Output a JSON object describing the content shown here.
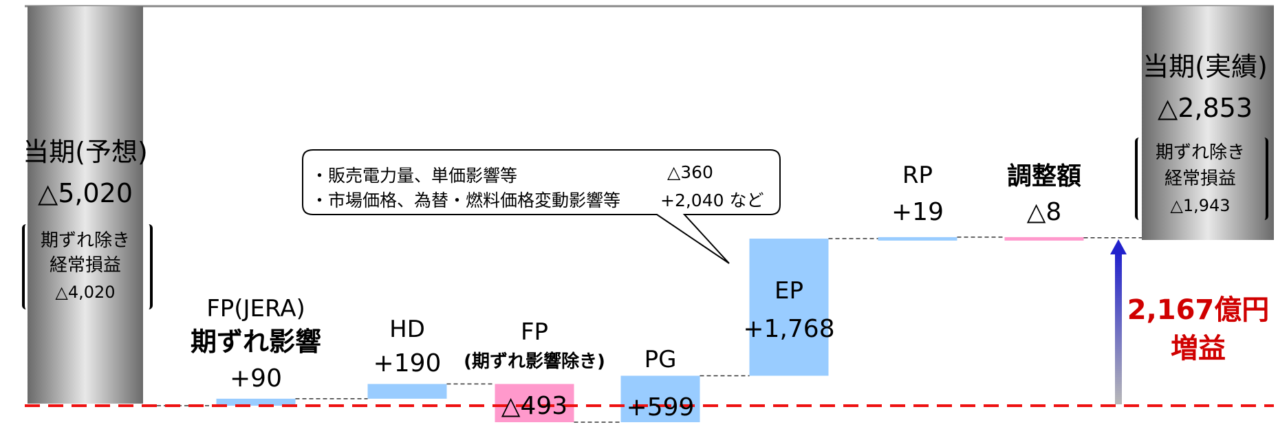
{
  "chart_data": {
    "type": "waterfall",
    "unit": "億円",
    "start": {
      "title": "当期(予想)",
      "value_label": "△5,020",
      "value": -5020,
      "note_lines": [
        "期ずれ除き",
        "経常損益"
      ],
      "note_value": "△4,020"
    },
    "steps": [
      {
        "name_lines": [
          "FP(JERA)",
          "期ずれ影響"
        ],
        "label": "+90",
        "value": 90,
        "color": "#99ccff"
      },
      {
        "name_lines": [
          "HD"
        ],
        "label": "+190",
        "value": 190,
        "color": "#99ccff"
      },
      {
        "name_lines": [
          "FP",
          "(期ずれ影響除き)"
        ],
        "label": "△493",
        "value": -493,
        "color": "#ff99cc"
      },
      {
        "name_lines": [
          "PG"
        ],
        "label": "+599",
        "value": 599,
        "color": "#99ccff"
      },
      {
        "name_lines": [
          "EP"
        ],
        "label": "+1,768",
        "value": 1768,
        "color": "#99ccff"
      },
      {
        "name_lines": [
          "RP"
        ],
        "label": "+19",
        "value": 19,
        "color": "#99ccff"
      },
      {
        "name_lines": [
          "調整額"
        ],
        "label": "△8",
        "value": -8,
        "color": "#ff99cc"
      }
    ],
    "end": {
      "title": "当期(実績)",
      "value_label": "△2,853",
      "value": -2853,
      "note_lines": [
        "期ずれ除き",
        "経常損益"
      ],
      "note_value": "△1,943"
    },
    "callout_lines": [
      {
        "text": "・販売電力量、単価影響等",
        "value": "△360"
      },
      {
        "text": "・市場価格、為替・燃料価格変動影響等",
        "value": "+2,040 など"
      }
    ],
    "total_change": {
      "lines": [
        "2,167億円",
        "増益"
      ]
    }
  },
  "colors": {
    "increase": "#99ccff",
    "decrease": "#ff99cc",
    "baseline": "#ee1111",
    "total_text": "#d00000",
    "arrow": "#2222cc"
  }
}
